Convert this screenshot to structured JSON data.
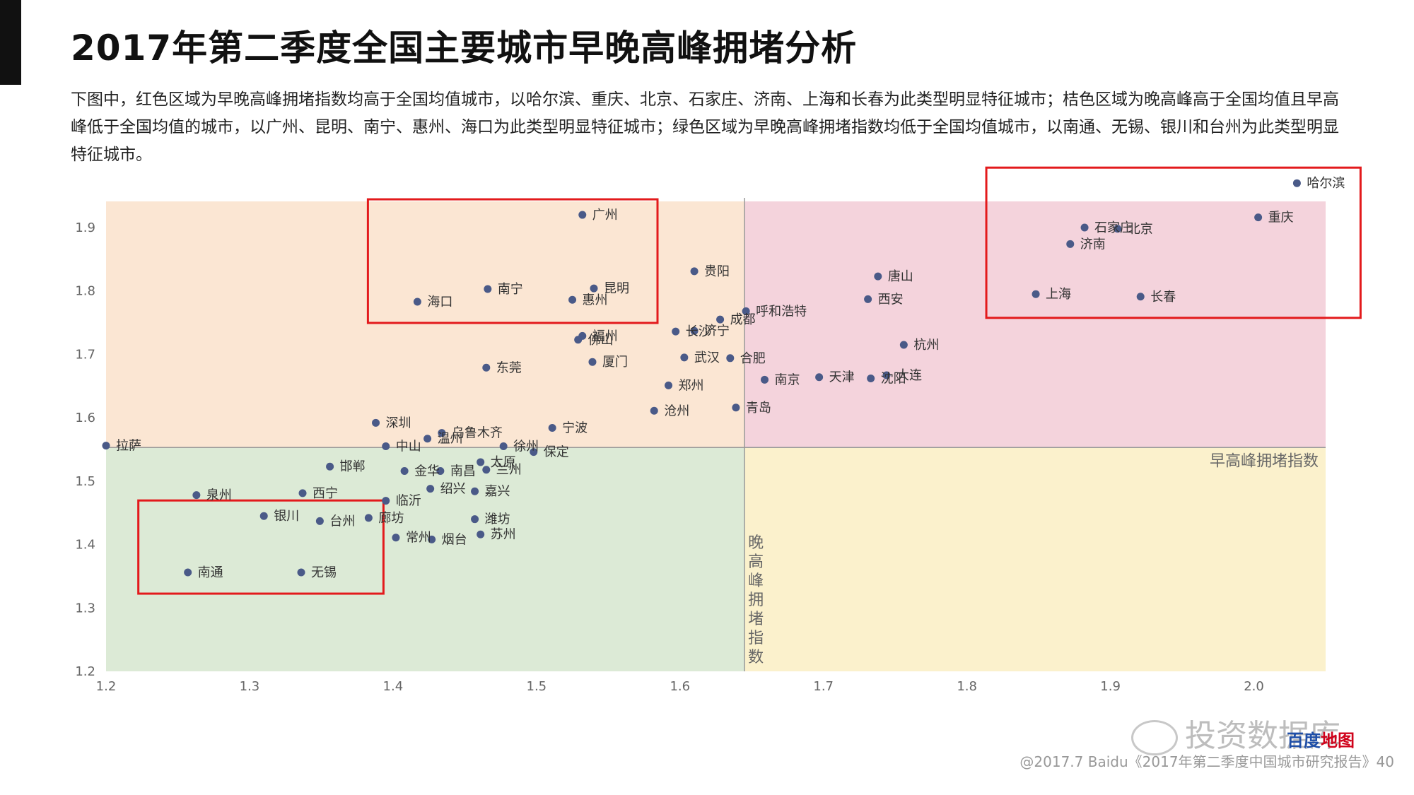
{
  "page": {
    "title": "2017年第二季度全国主要城市早晚高峰拥堵分析",
    "description": "下图中，红色区域为早晚高峰拥堵指数均高于全国均值城市，以哈尔滨、重庆、北京、石家庄、济南、上海和长春为此类型明显特征城市；桔色区域为晚高峰高于全国均值且早高峰低于全国均值的城市，以广州、昆明、南宁、惠州、海口为此类型明显特征城市；绿色区域为早晚高峰拥堵指数均低于全国均值城市，以南通、无锡、银川和台州为此类型明显特征城市。",
    "footer": "@2017.7 Baidu《2017年第二季度中国城市研究报告》40",
    "watermark": "投资数据库",
    "brand_logo": {
      "part1": "百度",
      "part2": "地图"
    }
  },
  "colors": {
    "orange_region": "#fbe6d3",
    "red_region": "#f4d3dc",
    "green_region": "#dcead6",
    "yellow_region": "#fbf1cc",
    "point": "#4a5a88",
    "highlight_box": "#e31a1c"
  },
  "chart_data": {
    "type": "scatter",
    "xlabel": "早高峰拥堵指数",
    "ylabel": "晚高峰拥堵指数",
    "xlim": [
      1.2,
      2.05
    ],
    "ylim": [
      1.2,
      1.93
    ],
    "x_ticks": [
      "1.2",
      "1.3",
      "1.4",
      "1.5",
      "1.6",
      "1.7",
      "1.8",
      "1.9",
      "2.0"
    ],
    "y_ticks": [
      "1.2",
      "1.3",
      "1.4",
      "1.5",
      "1.6",
      "1.7",
      "1.8",
      "1.9"
    ],
    "national_avg": {
      "x": 1.645,
      "y": 1.553
    },
    "highlight_groups": [
      [
        "哈尔滨",
        "重庆",
        "北京",
        "石家庄",
        "济南",
        "上海",
        "长春"
      ],
      [
        "广州",
        "昆明",
        "南宁",
        "惠州",
        "海口"
      ],
      [
        "南通",
        "无锡",
        "银川",
        "台州"
      ]
    ],
    "points": [
      {
        "name": "哈尔滨",
        "x": 2.03,
        "y": 1.97
      },
      {
        "name": "重庆",
        "x": 2.003,
        "y": 1.916
      },
      {
        "name": "石家庄",
        "x": 1.882,
        "y": 1.9
      },
      {
        "name": "北京",
        "x": 1.905,
        "y": 1.898
      },
      {
        "name": "济南",
        "x": 1.872,
        "y": 1.874
      },
      {
        "name": "上海",
        "x": 1.848,
        "y": 1.795
      },
      {
        "name": "长春",
        "x": 1.921,
        "y": 1.791
      },
      {
        "name": "唐山",
        "x": 1.738,
        "y": 1.823
      },
      {
        "name": "西安",
        "x": 1.731,
        "y": 1.787
      },
      {
        "name": "杭州",
        "x": 1.756,
        "y": 1.715
      },
      {
        "name": "大连",
        "x": 1.744,
        "y": 1.667
      },
      {
        "name": "沈阳",
        "x": 1.733,
        "y": 1.662
      },
      {
        "name": "天津",
        "x": 1.697,
        "y": 1.664
      },
      {
        "name": "南京",
        "x": 1.659,
        "y": 1.66
      },
      {
        "name": "青岛",
        "x": 1.639,
        "y": 1.616
      },
      {
        "name": "呼和浩特",
        "x": 1.646,
        "y": 1.768
      },
      {
        "name": "成都",
        "x": 1.628,
        "y": 1.755
      },
      {
        "name": "合肥",
        "x": 1.635,
        "y": 1.694
      },
      {
        "name": "贵阳",
        "x": 1.61,
        "y": 1.831
      },
      {
        "name": "济宁",
        "x": 1.61,
        "y": 1.737
      },
      {
        "name": "长沙",
        "x": 1.597,
        "y": 1.736
      },
      {
        "name": "武汉",
        "x": 1.603,
        "y": 1.695
      },
      {
        "name": "郑州",
        "x": 1.592,
        "y": 1.651
      },
      {
        "name": "沧州",
        "x": 1.582,
        "y": 1.611
      },
      {
        "name": "广州",
        "x": 1.532,
        "y": 1.92
      },
      {
        "name": "昆明",
        "x": 1.54,
        "y": 1.804
      },
      {
        "name": "惠州",
        "x": 1.525,
        "y": 1.786
      },
      {
        "name": "南宁",
        "x": 1.466,
        "y": 1.803
      },
      {
        "name": "海口",
        "x": 1.417,
        "y": 1.783
      },
      {
        "name": "福州",
        "x": 1.532,
        "y": 1.729
      },
      {
        "name": "佛山",
        "x": 1.529,
        "y": 1.723
      },
      {
        "name": "厦门",
        "x": 1.539,
        "y": 1.688
      },
      {
        "name": "东莞",
        "x": 1.465,
        "y": 1.679
      },
      {
        "name": "宁波",
        "x": 1.511,
        "y": 1.584
      },
      {
        "name": "深圳",
        "x": 1.388,
        "y": 1.592
      },
      {
        "name": "乌鲁木齐",
        "x": 1.434,
        "y": 1.576
      },
      {
        "name": "温州",
        "x": 1.424,
        "y": 1.567
      },
      {
        "name": "中山",
        "x": 1.395,
        "y": 1.555
      },
      {
        "name": "徐州",
        "x": 1.477,
        "y": 1.555
      },
      {
        "name": "保定",
        "x": 1.498,
        "y": 1.546
      },
      {
        "name": "太原",
        "x": 1.461,
        "y": 1.53
      },
      {
        "name": "兰州",
        "x": 1.465,
        "y": 1.518
      },
      {
        "name": "南昌",
        "x": 1.433,
        "y": 1.516
      },
      {
        "name": "金华",
        "x": 1.408,
        "y": 1.516
      },
      {
        "name": "邯郸",
        "x": 1.356,
        "y": 1.523
      },
      {
        "name": "绍兴",
        "x": 1.426,
        "y": 1.488
      },
      {
        "name": "嘉兴",
        "x": 1.457,
        "y": 1.484
      },
      {
        "name": "西宁",
        "x": 1.337,
        "y": 1.481
      },
      {
        "name": "泉州",
        "x": 1.263,
        "y": 1.478
      },
      {
        "name": "临沂",
        "x": 1.395,
        "y": 1.469
      },
      {
        "name": "拉萨",
        "x": 1.2,
        "y": 1.556
      },
      {
        "name": "银川",
        "x": 1.31,
        "y": 1.445
      },
      {
        "name": "台州",
        "x": 1.349,
        "y": 1.437
      },
      {
        "name": "廊坊",
        "x": 1.383,
        "y": 1.442
      },
      {
        "name": "潍坊",
        "x": 1.457,
        "y": 1.44
      },
      {
        "name": "苏州",
        "x": 1.461,
        "y": 1.416
      },
      {
        "name": "常州",
        "x": 1.402,
        "y": 1.411
      },
      {
        "name": "烟台",
        "x": 1.427,
        "y": 1.408
      },
      {
        "name": "南通",
        "x": 1.257,
        "y": 1.356
      },
      {
        "name": "无锡",
        "x": 1.336,
        "y": 1.356
      }
    ]
  }
}
